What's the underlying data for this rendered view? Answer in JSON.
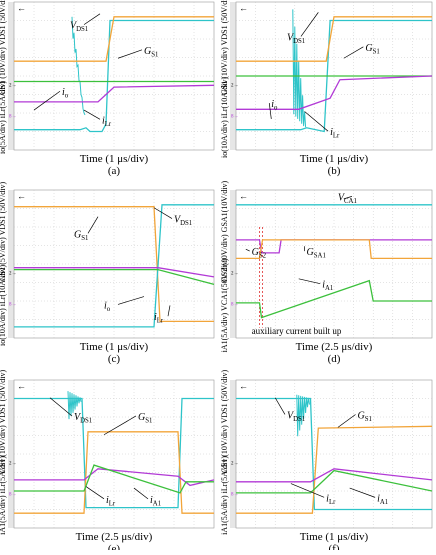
{
  "colors": {
    "cyan": "#2ec4c9",
    "orange": "#f2a53a",
    "magenta": "#b23ad6",
    "green": "#3cc03c",
    "red": "#e03030",
    "grid": "#c8c8c8",
    "screen": "#ffffff",
    "sidebar": "#e6e6e6",
    "text": "#000000"
  },
  "chart_data": [
    {
      "id": "a",
      "type": "line",
      "caption": "(a)",
      "xlabel": "Time (1 μs/div)",
      "ylabels": [
        "G_S1 (10V/div)  V_DS1 (50V/div)",
        "i_o(5A/div)  i_Lr(5A/div)"
      ],
      "series": [
        {
          "name": "V_DS1",
          "color": "cyan",
          "points": [
            [
              0,
              0.55
            ],
            [
              3.3,
              0.55
            ],
            [
              3.6,
              0.6
            ],
            [
              3.8,
              0.5
            ],
            [
              4.4,
              0.5
            ],
            [
              4.6,
              0.7
            ],
            [
              4.8,
              3.5
            ],
            [
              5.1,
              3.5
            ],
            [
              10,
              3.5
            ]
          ],
          "noise": [
            3.2,
            3.6
          ]
        },
        {
          "name": "G_S1",
          "color": "orange",
          "points": [
            [
              0,
              2.4
            ],
            [
              4.6,
              2.4
            ],
            [
              5.0,
              3.6
            ],
            [
              10,
              3.6
            ]
          ]
        },
        {
          "name": "i_o",
          "color": "green",
          "points": [
            [
              0,
              1.85
            ],
            [
              10,
              1.85
            ]
          ]
        },
        {
          "name": "i_Lr",
          "color": "magenta",
          "points": [
            [
              0,
              1.3
            ],
            [
              4.2,
              1.3
            ],
            [
              5.0,
              1.7
            ],
            [
              10,
              1.75
            ]
          ]
        }
      ],
      "labels": [
        {
          "text": "V_DS1",
          "series": "V_DS1"
        },
        {
          "text": "G_S1",
          "series": "G_S1"
        },
        {
          "text": "i_o",
          "series": "i_o"
        },
        {
          "text": "i_Lr",
          "series": "i_Lr"
        }
      ]
    },
    {
      "id": "b",
      "type": "line",
      "caption": "(b)",
      "xlabel": "Time (1 μs/div)",
      "ylabels": [
        "G_S1 (10V/div)  V_DS1 (50V/div)",
        "i_o(10A/div)  i_Lr(10A/div)"
      ],
      "series": [
        {
          "name": "V_DS1",
          "color": "cyan",
          "points": [
            [
              0,
              0.55
            ],
            [
              3.3,
              0.55
            ],
            [
              3.6,
              0.6
            ],
            [
              4.5,
              0.5
            ],
            [
              4.8,
              3.5
            ],
            [
              10,
              3.5
            ]
          ],
          "noise": [
            1.0,
            3.8
          ]
        },
        {
          "name": "G_S1",
          "color": "orange",
          "points": [
            [
              0,
              2.4
            ],
            [
              4.6,
              2.4
            ],
            [
              5.0,
              3.6
            ],
            [
              10,
              3.6
            ]
          ]
        },
        {
          "name": "i_o",
          "color": "green",
          "points": [
            [
              0,
              2.0
            ],
            [
              10,
              2.0
            ]
          ]
        },
        {
          "name": "i_Lr",
          "color": "magenta",
          "points": [
            [
              0,
              1.1
            ],
            [
              3.2,
              1.1
            ],
            [
              4.8,
              1.4
            ],
            [
              5.3,
              1.9
            ],
            [
              10,
              2.0
            ]
          ]
        }
      ],
      "labels": [
        {
          "text": "V_DS1",
          "series": "V_DS1"
        },
        {
          "text": "G_S1",
          "series": "G_S1"
        },
        {
          "text": "i_o",
          "series": "i_o"
        },
        {
          "text": "i_Lr",
          "series": "i_Lr"
        }
      ]
    },
    {
      "id": "c",
      "type": "line",
      "caption": "(c)",
      "xlabel": "Time (1 μs/div)",
      "ylabels": [
        "G_S1 (5V/div)  V_DS1 (50V/div)",
        "i_o(10A/div)  i_Lr(10A/div)"
      ],
      "series": [
        {
          "name": "G_S1",
          "color": "orange",
          "points": [
            [
              0,
              3.55
            ],
            [
              7.0,
              3.55
            ],
            [
              7.3,
              0.45
            ],
            [
              10,
              0.45
            ]
          ]
        },
        {
          "name": "V_DS1",
          "color": "cyan",
          "points": [
            [
              0,
              0.3
            ],
            [
              7.0,
              0.3
            ],
            [
              7.4,
              3.6
            ],
            [
              10,
              3.6
            ]
          ]
        },
        {
          "name": "i_o",
          "color": "green",
          "points": [
            [
              0,
              1.85
            ],
            [
              7.2,
              1.85
            ],
            [
              10,
              1.45
            ]
          ]
        },
        {
          "name": "i_Lr",
          "color": "magenta",
          "points": [
            [
              0,
              1.9
            ],
            [
              7.2,
              1.9
            ],
            [
              10,
              1.65
            ]
          ]
        }
      ],
      "labels": [
        {
          "text": "G_S1",
          "series": "G_S1"
        },
        {
          "text": "V_DS1",
          "series": "V_DS1"
        },
        {
          "text": "i_o",
          "series": "i_o"
        },
        {
          "text": "i_Lr",
          "series": "i_Lr"
        }
      ]
    },
    {
      "id": "d",
      "type": "line",
      "caption": "(d)",
      "xlabel": "Time (2.5 μs/div)",
      "ylabels": [
        "G_S2 (10V/div)  G_SA1(10V/div)",
        "i_A1(5A/div)  V_CA1(50V/div)"
      ],
      "annotation": "auxiliary current built up",
      "series": [
        {
          "name": "V_CA1",
          "color": "cyan",
          "points": [
            [
              0,
              3.6
            ],
            [
              10,
              3.6
            ]
          ]
        },
        {
          "name": "G_S2",
          "color": "magenta",
          "points": [
            [
              0,
              2.65
            ],
            [
              1.2,
              2.65
            ],
            [
              1.3,
              2.3
            ],
            [
              2.2,
              2.3
            ],
            [
              2.3,
              2.65
            ],
            [
              10,
              2.65
            ]
          ]
        },
        {
          "name": "G_SA1",
          "color": "orange",
          "points": [
            [
              0,
              2.15
            ],
            [
              1.2,
              2.15
            ],
            [
              1.35,
              2.65
            ],
            [
              6.8,
              2.65
            ],
            [
              6.9,
              2.15
            ],
            [
              10,
              2.15
            ]
          ]
        },
        {
          "name": "i_A1",
          "color": "green",
          "points": [
            [
              0,
              0.95
            ],
            [
              1.2,
              0.95
            ],
            [
              1.3,
              0.55
            ],
            [
              6.8,
              1.55
            ],
            [
              7.0,
              1.0
            ],
            [
              10,
              1.0
            ]
          ]
        }
      ],
      "labels": [
        {
          "text": "V_CA1",
          "series": "V_CA1"
        },
        {
          "text": "G_S2",
          "series": "G_S2"
        },
        {
          "text": "G_SA1",
          "series": "G_SA1"
        },
        {
          "text": "i_A1",
          "series": "i_A1"
        }
      ]
    },
    {
      "id": "e",
      "type": "line",
      "caption": "(e)",
      "xlabel": "Time (2.5 μs/div)",
      "ylabels": [
        "G_S1 (10V/div)  V_DS1 (50V/div)",
        "i_A1(5A/div)  i_Lr(5A/div)"
      ],
      "series": [
        {
          "name": "V_DS1",
          "color": "cyan",
          "points": [
            [
              0,
              3.5
            ],
            [
              3.4,
              3.5
            ],
            [
              3.6,
              0.55
            ],
            [
              8.2,
              0.55
            ],
            [
              8.4,
              3.5
            ],
            [
              10,
              3.5
            ]
          ],
          "noise": [
            2.9,
            3.7
          ]
        },
        {
          "name": "G_S1",
          "color": "orange",
          "points": [
            [
              0,
              0.4
            ],
            [
              3.5,
              0.4
            ],
            [
              3.7,
              2.6
            ],
            [
              8.2,
              2.6
            ],
            [
              8.4,
              0.4
            ],
            [
              10,
              0.4
            ]
          ]
        },
        {
          "name": "i_Lr",
          "color": "magenta",
          "points": [
            [
              0,
              1.3
            ],
            [
              3.5,
              1.3
            ],
            [
              4.2,
              1.6
            ],
            [
              8.2,
              1.4
            ],
            [
              8.8,
              1.15
            ],
            [
              10,
              1.3
            ]
          ]
        },
        {
          "name": "i_A1",
          "color": "green",
          "points": [
            [
              0,
              1.0
            ],
            [
              3.5,
              1.0
            ],
            [
              4.0,
              1.7
            ],
            [
              8.3,
              0.95
            ],
            [
              8.6,
              1.25
            ],
            [
              10,
              1.25
            ]
          ]
        }
      ],
      "labels": [
        {
          "text": "V_DS1",
          "series": "V_DS1"
        },
        {
          "text": "G_S1",
          "series": "G_S1"
        },
        {
          "text": "i_Lr",
          "series": "i_Lr"
        },
        {
          "text": "i_A1",
          "series": "i_A1"
        }
      ]
    },
    {
      "id": "f",
      "type": "line",
      "caption": "(f)",
      "xlabel": "Time (1 μs/div)",
      "ylabels": [
        "G_S1 (10V/div)  V_DS1 (50V/div)",
        "i_A1(5A/div)  i_Lr(5A/div)"
      ],
      "series": [
        {
          "name": "V_DS1",
          "color": "cyan",
          "points": [
            [
              0,
              3.5
            ],
            [
              3.8,
              3.5
            ],
            [
              4.0,
              0.5
            ],
            [
              10,
              0.5
            ]
          ],
          "noise": [
            2.4,
            3.6
          ]
        },
        {
          "name": "G_S1",
          "color": "orange",
          "points": [
            [
              0,
              0.4
            ],
            [
              3.9,
              0.4
            ],
            [
              4.2,
              2.7
            ],
            [
              10,
              2.75
            ]
          ]
        },
        {
          "name": "i_Lr",
          "color": "magenta",
          "points": [
            [
              0,
              1.25
            ],
            [
              3.8,
              1.25
            ],
            [
              5.0,
              1.6
            ],
            [
              10,
              1.3
            ]
          ]
        },
        {
          "name": "i_A1",
          "color": "green",
          "points": [
            [
              0,
              0.95
            ],
            [
              3.8,
              0.95
            ],
            [
              5.0,
              1.55
            ],
            [
              10,
              1.0
            ]
          ]
        }
      ],
      "labels": [
        {
          "text": "V_DS1",
          "series": "V_DS1"
        },
        {
          "text": "G_S1",
          "series": "G_S1"
        },
        {
          "text": "i_Lr",
          "series": "i_Lr"
        },
        {
          "text": "i_A1",
          "series": "i_A1"
        }
      ]
    }
  ]
}
